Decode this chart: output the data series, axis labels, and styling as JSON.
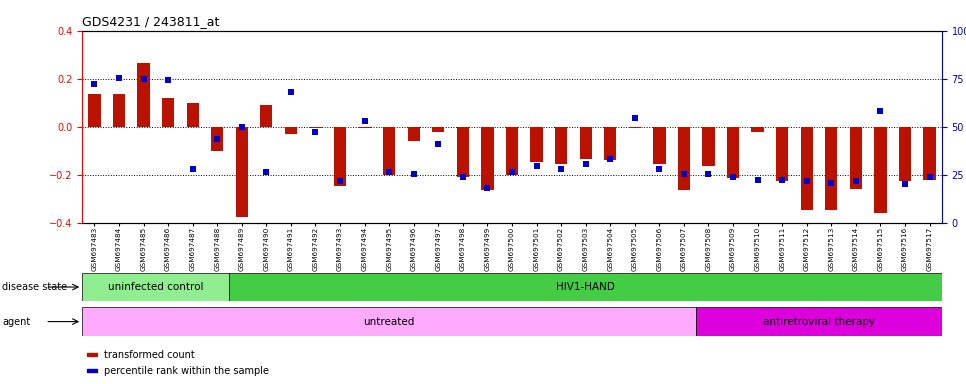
{
  "title": "GDS4231 / 243811_at",
  "samples": [
    "GSM697483",
    "GSM697484",
    "GSM697485",
    "GSM697486",
    "GSM697487",
    "GSM697488",
    "GSM697489",
    "GSM697490",
    "GSM697491",
    "GSM697492",
    "GSM697493",
    "GSM697494",
    "GSM697495",
    "GSM697496",
    "GSM697497",
    "GSM697498",
    "GSM697499",
    "GSM697500",
    "GSM697501",
    "GSM697502",
    "GSM697503",
    "GSM697504",
    "GSM697505",
    "GSM697506",
    "GSM697507",
    "GSM697508",
    "GSM697509",
    "GSM697510",
    "GSM697511",
    "GSM697512",
    "GSM697513",
    "GSM697514",
    "GSM697515",
    "GSM697516",
    "GSM697517"
  ],
  "red_values": [
    0.135,
    0.135,
    0.265,
    0.12,
    0.1,
    -0.1,
    -0.375,
    0.09,
    -0.03,
    -0.005,
    -0.245,
    -0.005,
    -0.2,
    -0.06,
    -0.02,
    -0.21,
    -0.265,
    -0.2,
    -0.145,
    -0.155,
    -0.135,
    -0.14,
    -0.005,
    -0.155,
    -0.265,
    -0.165,
    -0.215,
    -0.02,
    -0.225,
    -0.345,
    -0.345,
    -0.26,
    -0.36,
    -0.225,
    -0.22
  ],
  "blue_values": [
    0.18,
    0.205,
    0.2,
    0.195,
    -0.175,
    -0.05,
    0.0,
    -0.19,
    0.145,
    -0.02,
    -0.225,
    0.025,
    -0.19,
    -0.195,
    -0.07,
    -0.21,
    -0.255,
    -0.19,
    -0.165,
    -0.175,
    -0.155,
    -0.135,
    0.035,
    -0.175,
    -0.195,
    -0.195,
    -0.21,
    -0.22,
    -0.22,
    -0.225,
    -0.235,
    -0.225,
    0.065,
    -0.24,
    -0.21
  ],
  "disease_state_groups": [
    {
      "label": "uninfected control",
      "start": 0,
      "end": 6,
      "color": "#90EE90"
    },
    {
      "label": "HIV1-HAND",
      "start": 6,
      "end": 35,
      "color": "#44CC44"
    }
  ],
  "agent_groups": [
    {
      "label": "untreated",
      "start": 0,
      "end": 25,
      "color": "#FFAAFF"
    },
    {
      "label": "antiretroviral therapy",
      "start": 25,
      "end": 35,
      "color": "#DD00DD"
    }
  ],
  "ylim": [
    -0.4,
    0.4
  ],
  "yticks_left": [
    -0.4,
    -0.2,
    0.0,
    0.2,
    0.4
  ],
  "right_tick_positions": [
    -0.4,
    -0.2,
    0.0,
    0.2,
    0.4
  ],
  "right_tick_labels": [
    "0",
    "25",
    "50",
    "75",
    "100%"
  ],
  "hlines": [
    0.2,
    0.0,
    -0.2
  ],
  "red_color": "#BB1100",
  "blue_color": "#0000CC",
  "legend_items": [
    {
      "color": "#BB1100",
      "label": "transformed count"
    },
    {
      "color": "#0000CC",
      "label": "percentile rank within the sample"
    }
  ],
  "ds_label": "disease state",
  "agent_label": "agent"
}
